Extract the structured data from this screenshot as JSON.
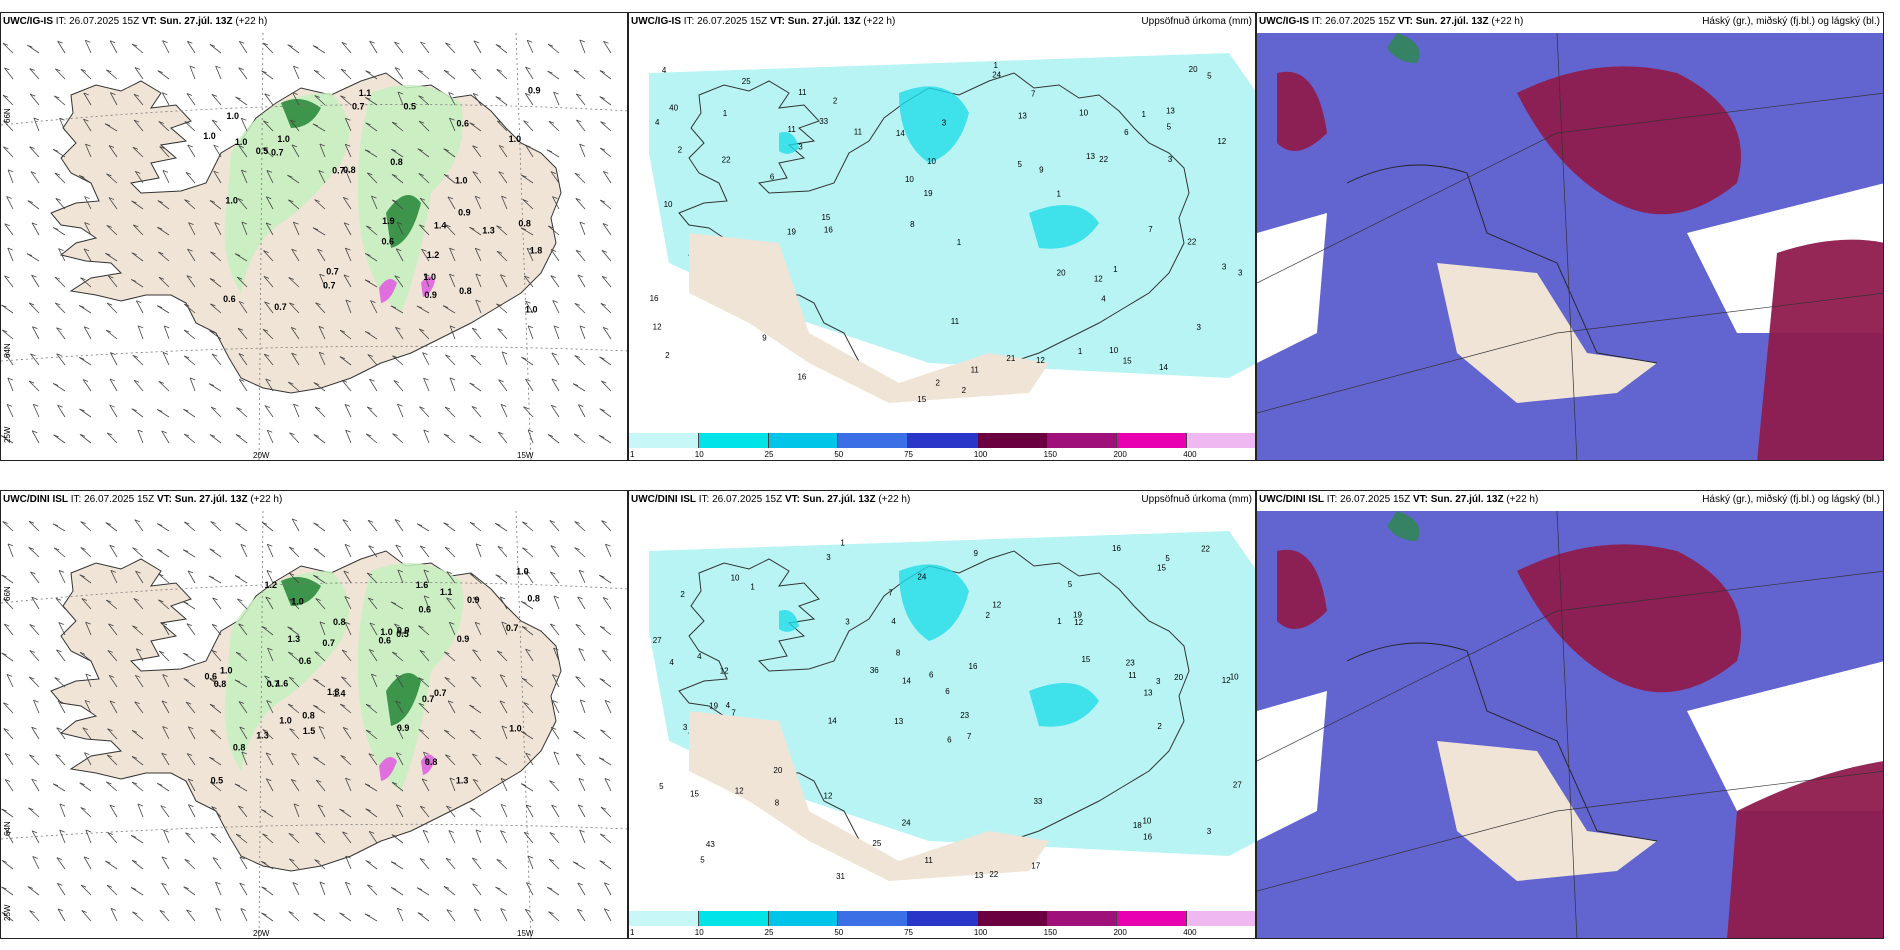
{
  "panels": {
    "p1": {
      "model": "UWC/IG-IS",
      "it": "IT: 26.07.2025 15Z",
      "vt_label": "VT:",
      "vt": "Sun. 27.júl. 13Z",
      "lead": "(+22 h)",
      "right": ""
    },
    "p2": {
      "model": "UWC/IG-IS",
      "it": "IT: 26.07.2025 15Z",
      "vt_label": "VT:",
      "vt": "Sun. 27.júl. 13Z",
      "lead": "(+22 h)",
      "right": "Uppsöfnuð úrkoma (mm)"
    },
    "p3": {
      "model": "UWC/IG-IS",
      "it": "IT: 26.07.2025 15Z",
      "vt_label": "VT:",
      "vt": "Sun. 27.júl. 13Z",
      "lead": "(+22 h)",
      "right": "Háský (gr.), miðský (fj.bl.) og lágský (bl.)"
    },
    "p4": {
      "model": "UWC/DINI ISL",
      "it": "IT: 26.07.2025 15Z",
      "vt_label": "VT:",
      "vt": "Sun. 27.júl. 13Z",
      "lead": "(+22 h)",
      "right": ""
    },
    "p5": {
      "model": "UWC/DINI ISL",
      "it": "IT: 26.07.2025 15Z",
      "vt_label": "VT:",
      "vt": "Sun. 27.júl. 13Z",
      "lead": "(+22 h)",
      "right": "Uppsöfnuð úrkoma (mm)"
    },
    "p6": {
      "model": "UWC/DINI ISL",
      "it": "IT: 26.07.2025 15Z",
      "vt_label": "VT:",
      "vt": "Sun. 27.júl. 13Z",
      "lead": "(+22 h)",
      "right": "Háský (gr.), miðský (fj.bl.) og lágský (bl.)"
    }
  },
  "axes": {
    "lat66": "66N",
    "lat64": "64N",
    "lon25": "25W",
    "lon20": "20W",
    "lon15": "15W"
  },
  "legend": {
    "labels": [
      "1",
      "10",
      "25",
      "50",
      "75",
      "100",
      "150",
      "200",
      "400"
    ],
    "colors": [
      "#c8f7f7",
      "#00e4e8",
      "#00c4e8",
      "#3a6fe6",
      "#2a36c8",
      "#6a0040",
      "#a0107a",
      "#e800b0",
      "#f0b8f0"
    ]
  },
  "colors": {
    "land": "#f0e4d6",
    "water": "#ffffff",
    "precip": "#b8f4f4",
    "precip_mid": "#20dce8",
    "cloud_mid": "#5a5ccc",
    "cloud_low": "#8e1b4c",
    "cloud_green": "#2a8a4a",
    "light_green": "#c6f0c0",
    "dark_green": "#2e8a3e",
    "magenta": "#e060e0"
  },
  "values": {
    "p1": [
      "1.0",
      "1.2",
      "0.6",
      "0.8",
      "0.7",
      "0.7",
      "1.0",
      "0.7",
      "0.6",
      "0.9",
      "0.8",
      "0.5",
      "0.8",
      "1.0",
      "0.7",
      "0.8",
      "1.0",
      "1.0",
      "1.4",
      "0.7",
      "1.0",
      "1.8",
      "1.3",
      "0.9",
      "0.5",
      "1.0",
      "1.0",
      "1.9",
      "1.0",
      "0.7",
      "1.1",
      "0.6",
      "0.9"
    ],
    "p2": [
      "2",
      "3",
      "1",
      "2",
      "1",
      "15",
      "20",
      "16",
      "13",
      "3",
      "3",
      "33",
      "13",
      "9",
      "10",
      "16",
      "15",
      "14",
      "14",
      "21",
      "15",
      "22",
      "19",
      "11",
      "10",
      "6",
      "5",
      "7",
      "25",
      "19",
      "16",
      "12",
      "20",
      "22",
      "40",
      "11",
      "11",
      "13",
      "24",
      "12",
      "22",
      "11",
      "10",
      "10",
      "11",
      "12",
      "4",
      "7",
      "3",
      "1",
      "10",
      "9",
      "8",
      "12",
      "3",
      "2",
      "2",
      "4",
      "1",
      "5",
      "6",
      "4",
      "3",
      "5",
      "2",
      "1",
      "1",
      "1"
    ],
    "p3": [],
    "p4": [
      "0.9",
      "0.7",
      "0.7",
      "0.6",
      "0.8",
      "1.0",
      "0.9",
      "0.9",
      "0.6",
      "0.8",
      "1.2",
      "1.3",
      "0.6",
      "1.6",
      "0.9",
      "0.8",
      "0.5",
      "1.3",
      "1.1",
      "1.0",
      "1.3",
      "1.4",
      "1.0",
      "0.7",
      "0.8",
      "1.3",
      "1.0",
      "1.0",
      "0.5",
      "0.7",
      "0.7",
      "1.0",
      "0.8",
      "0.8",
      "1.6",
      "0.6",
      "1.5"
    ],
    "p5": [
      "1",
      "5",
      "12",
      "13",
      "7",
      "4",
      "2",
      "1",
      "3",
      "2",
      "6",
      "5",
      "3",
      "14",
      "13",
      "22",
      "24",
      "16",
      "15",
      "20",
      "12",
      "19",
      "10",
      "20",
      "5",
      "4",
      "14",
      "11",
      "10",
      "15",
      "18",
      "12",
      "12",
      "36",
      "33",
      "27",
      "23",
      "25",
      "22",
      "24",
      "43",
      "31",
      "17",
      "10",
      "11",
      "12",
      "16",
      "19",
      "27",
      "23",
      "7",
      "13",
      "16",
      "15",
      "9",
      "8",
      "8",
      "6",
      "5",
      "4",
      "3",
      "2",
      "1",
      "12",
      "6",
      "4",
      "3",
      "7",
      "3"
    ],
    "p6": []
  }
}
